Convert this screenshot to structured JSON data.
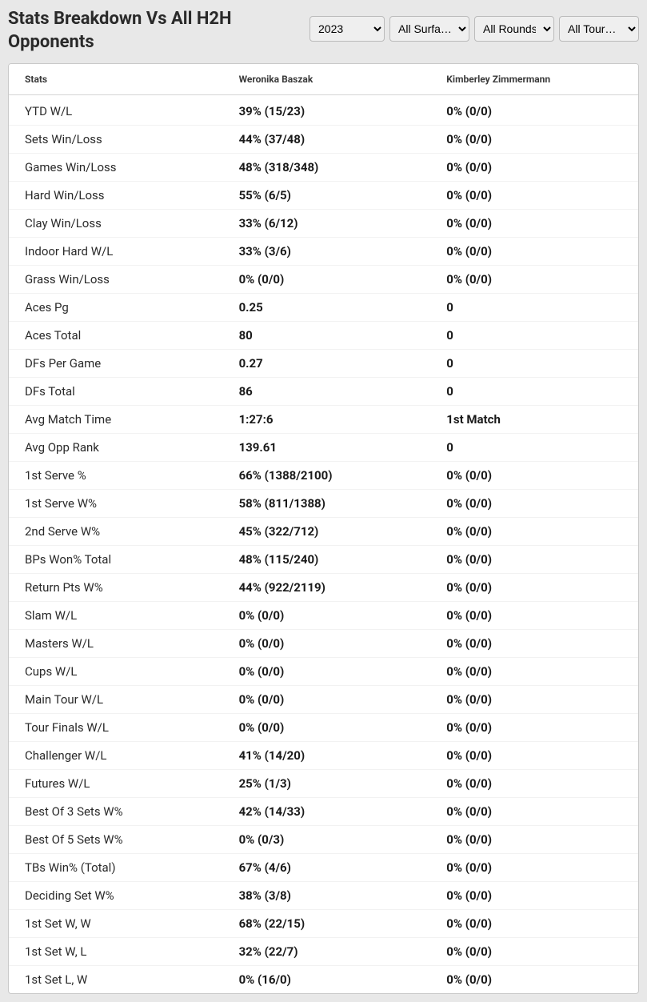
{
  "title": "Stats Breakdown Vs All H2H Opponents",
  "filters": {
    "year": {
      "selected": "2023",
      "options": [
        "2023"
      ]
    },
    "surface": {
      "selected": "All Surfa…",
      "options": [
        "All Surfa…"
      ]
    },
    "round": {
      "selected": "All Rounds",
      "options": [
        "All Rounds"
      ]
    },
    "tour": {
      "selected": "All Tour…",
      "options": [
        "All Tour…"
      ]
    }
  },
  "table": {
    "headers": {
      "stats": "Stats",
      "player1": "Weronika Baszak",
      "player2": "Kimberley Zimmermann"
    },
    "rows": [
      {
        "label": "YTD W/L",
        "p1": "39% (15/23)",
        "p2": "0% (0/0)"
      },
      {
        "label": "Sets Win/Loss",
        "p1": "44% (37/48)",
        "p2": "0% (0/0)"
      },
      {
        "label": "Games Win/Loss",
        "p1": "48% (318/348)",
        "p2": "0% (0/0)"
      },
      {
        "label": "Hard Win/Loss",
        "p1": "55% (6/5)",
        "p2": "0% (0/0)"
      },
      {
        "label": "Clay Win/Loss",
        "p1": "33% (6/12)",
        "p2": "0% (0/0)"
      },
      {
        "label": "Indoor Hard W/L",
        "p1": "33% (3/6)",
        "p2": "0% (0/0)"
      },
      {
        "label": "Grass Win/Loss",
        "p1": "0% (0/0)",
        "p2": "0% (0/0)"
      },
      {
        "label": "Aces Pg",
        "p1": "0.25",
        "p2": "0"
      },
      {
        "label": "Aces Total",
        "p1": "80",
        "p2": "0"
      },
      {
        "label": "DFs Per Game",
        "p1": "0.27",
        "p2": "0"
      },
      {
        "label": "DFs Total",
        "p1": "86",
        "p2": "0"
      },
      {
        "label": "Avg Match Time",
        "p1": "1:27:6",
        "p2": "1st Match"
      },
      {
        "label": "Avg Opp Rank",
        "p1": "139.61",
        "p2": "0"
      },
      {
        "label": "1st Serve %",
        "p1": "66% (1388/2100)",
        "p2": "0% (0/0)"
      },
      {
        "label": "1st Serve W%",
        "p1": "58% (811/1388)",
        "p2": "0% (0/0)"
      },
      {
        "label": "2nd Serve W%",
        "p1": "45% (322/712)",
        "p2": "0% (0/0)"
      },
      {
        "label": "BPs Won% Total",
        "p1": "48% (115/240)",
        "p2": "0% (0/0)"
      },
      {
        "label": "Return Pts W%",
        "p1": "44% (922/2119)",
        "p2": "0% (0/0)"
      },
      {
        "label": "Slam W/L",
        "p1": "0% (0/0)",
        "p2": "0% (0/0)"
      },
      {
        "label": "Masters W/L",
        "p1": "0% (0/0)",
        "p2": "0% (0/0)"
      },
      {
        "label": "Cups W/L",
        "p1": "0% (0/0)",
        "p2": "0% (0/0)"
      },
      {
        "label": "Main Tour W/L",
        "p1": "0% (0/0)",
        "p2": "0% (0/0)"
      },
      {
        "label": "Tour Finals W/L",
        "p1": "0% (0/0)",
        "p2": "0% (0/0)"
      },
      {
        "label": "Challenger W/L",
        "p1": "41% (14/20)",
        "p2": "0% (0/0)"
      },
      {
        "label": "Futures W/L",
        "p1": "25% (1/3)",
        "p2": "0% (0/0)"
      },
      {
        "label": "Best Of 3 Sets W%",
        "p1": "42% (14/33)",
        "p2": "0% (0/0)"
      },
      {
        "label": "Best Of 5 Sets W%",
        "p1": "0% (0/3)",
        "p2": "0% (0/0)"
      },
      {
        "label": "TBs Win% (Total)",
        "p1": "67% (4/6)",
        "p2": "0% (0/0)"
      },
      {
        "label": "Deciding Set W%",
        "p1": "38% (3/8)",
        "p2": "0% (0/0)"
      },
      {
        "label": "1st Set W, W",
        "p1": "68% (22/15)",
        "p2": "0% (0/0)"
      },
      {
        "label": "1st Set W, L",
        "p1": "32% (22/7)",
        "p2": "0% (0/0)"
      },
      {
        "label": "1st Set L, W",
        "p1": "0% (16/0)",
        "p2": "0% (0/0)"
      }
    ]
  }
}
